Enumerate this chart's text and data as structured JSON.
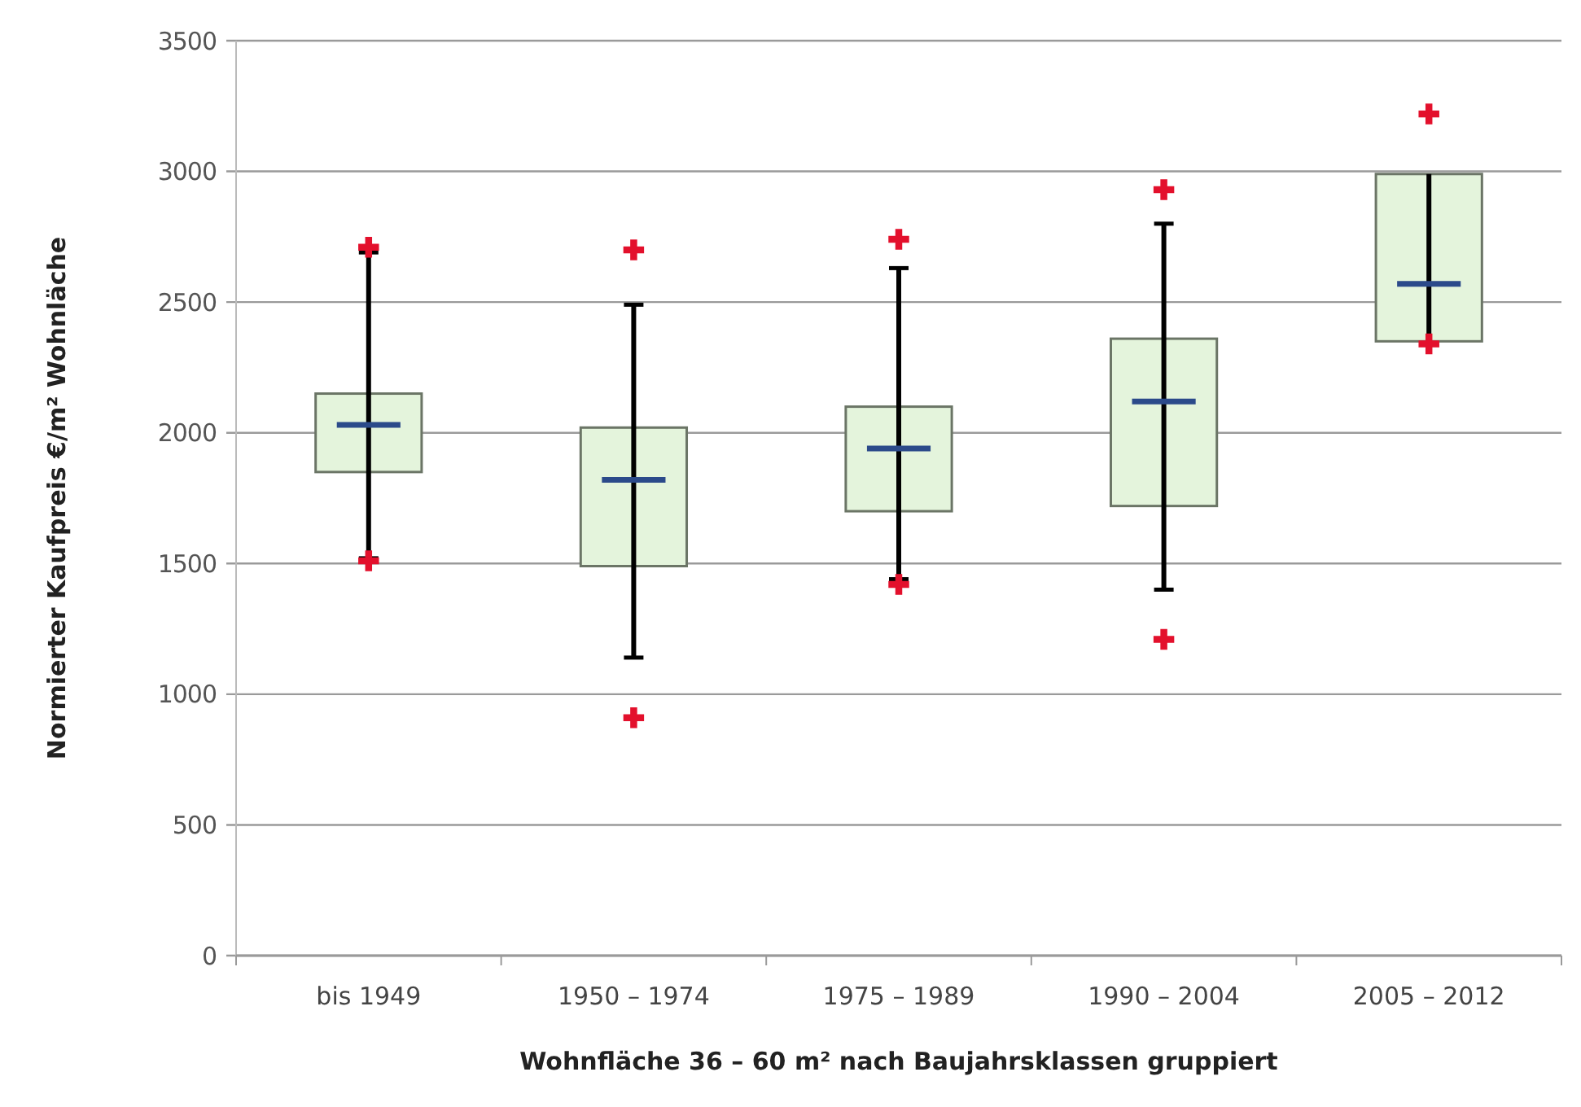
{
  "chart_data": {
    "type": "box",
    "xlabel": "Wohnfläche 36 – 60 m² nach Baujahrsklassen gruppiert",
    "ylabel": "Normierter Kaufpreis €/m² Wohnläche",
    "categories": [
      "bis 1949",
      "1950 – 1974",
      "1975 – 1989",
      "1990 – 2004",
      "2005 – 2012"
    ],
    "ylim": [
      0,
      3500
    ],
    "yticks": [
      0,
      500,
      1000,
      1500,
      2000,
      2500,
      3000,
      3500
    ],
    "grid": "y",
    "color": "#e4f4dc",
    "boxes": [
      {
        "low": 1520,
        "q1": 1850,
        "median": 2030,
        "q3": 2150,
        "high": 2690,
        "outliers": [
          2710,
          1510
        ]
      },
      {
        "low": 1140,
        "q1": 1490,
        "median": 1820,
        "q3": 2020,
        "high": 2490,
        "outliers": [
          2700,
          910
        ]
      },
      {
        "low": 1440,
        "q1": 1700,
        "median": 1940,
        "q3": 2100,
        "high": 2630,
        "outliers": [
          2740,
          1420
        ]
      },
      {
        "low": 1400,
        "q1": 1720,
        "median": 2120,
        "q3": 2360,
        "high": 2800,
        "outliers": [
          2930,
          1210
        ]
      },
      {
        "low": 2340,
        "q1": 2350,
        "median": 2570,
        "q3": 2990,
        "high": 2990,
        "outliers": [
          3220,
          2340
        ]
      }
    ]
  }
}
